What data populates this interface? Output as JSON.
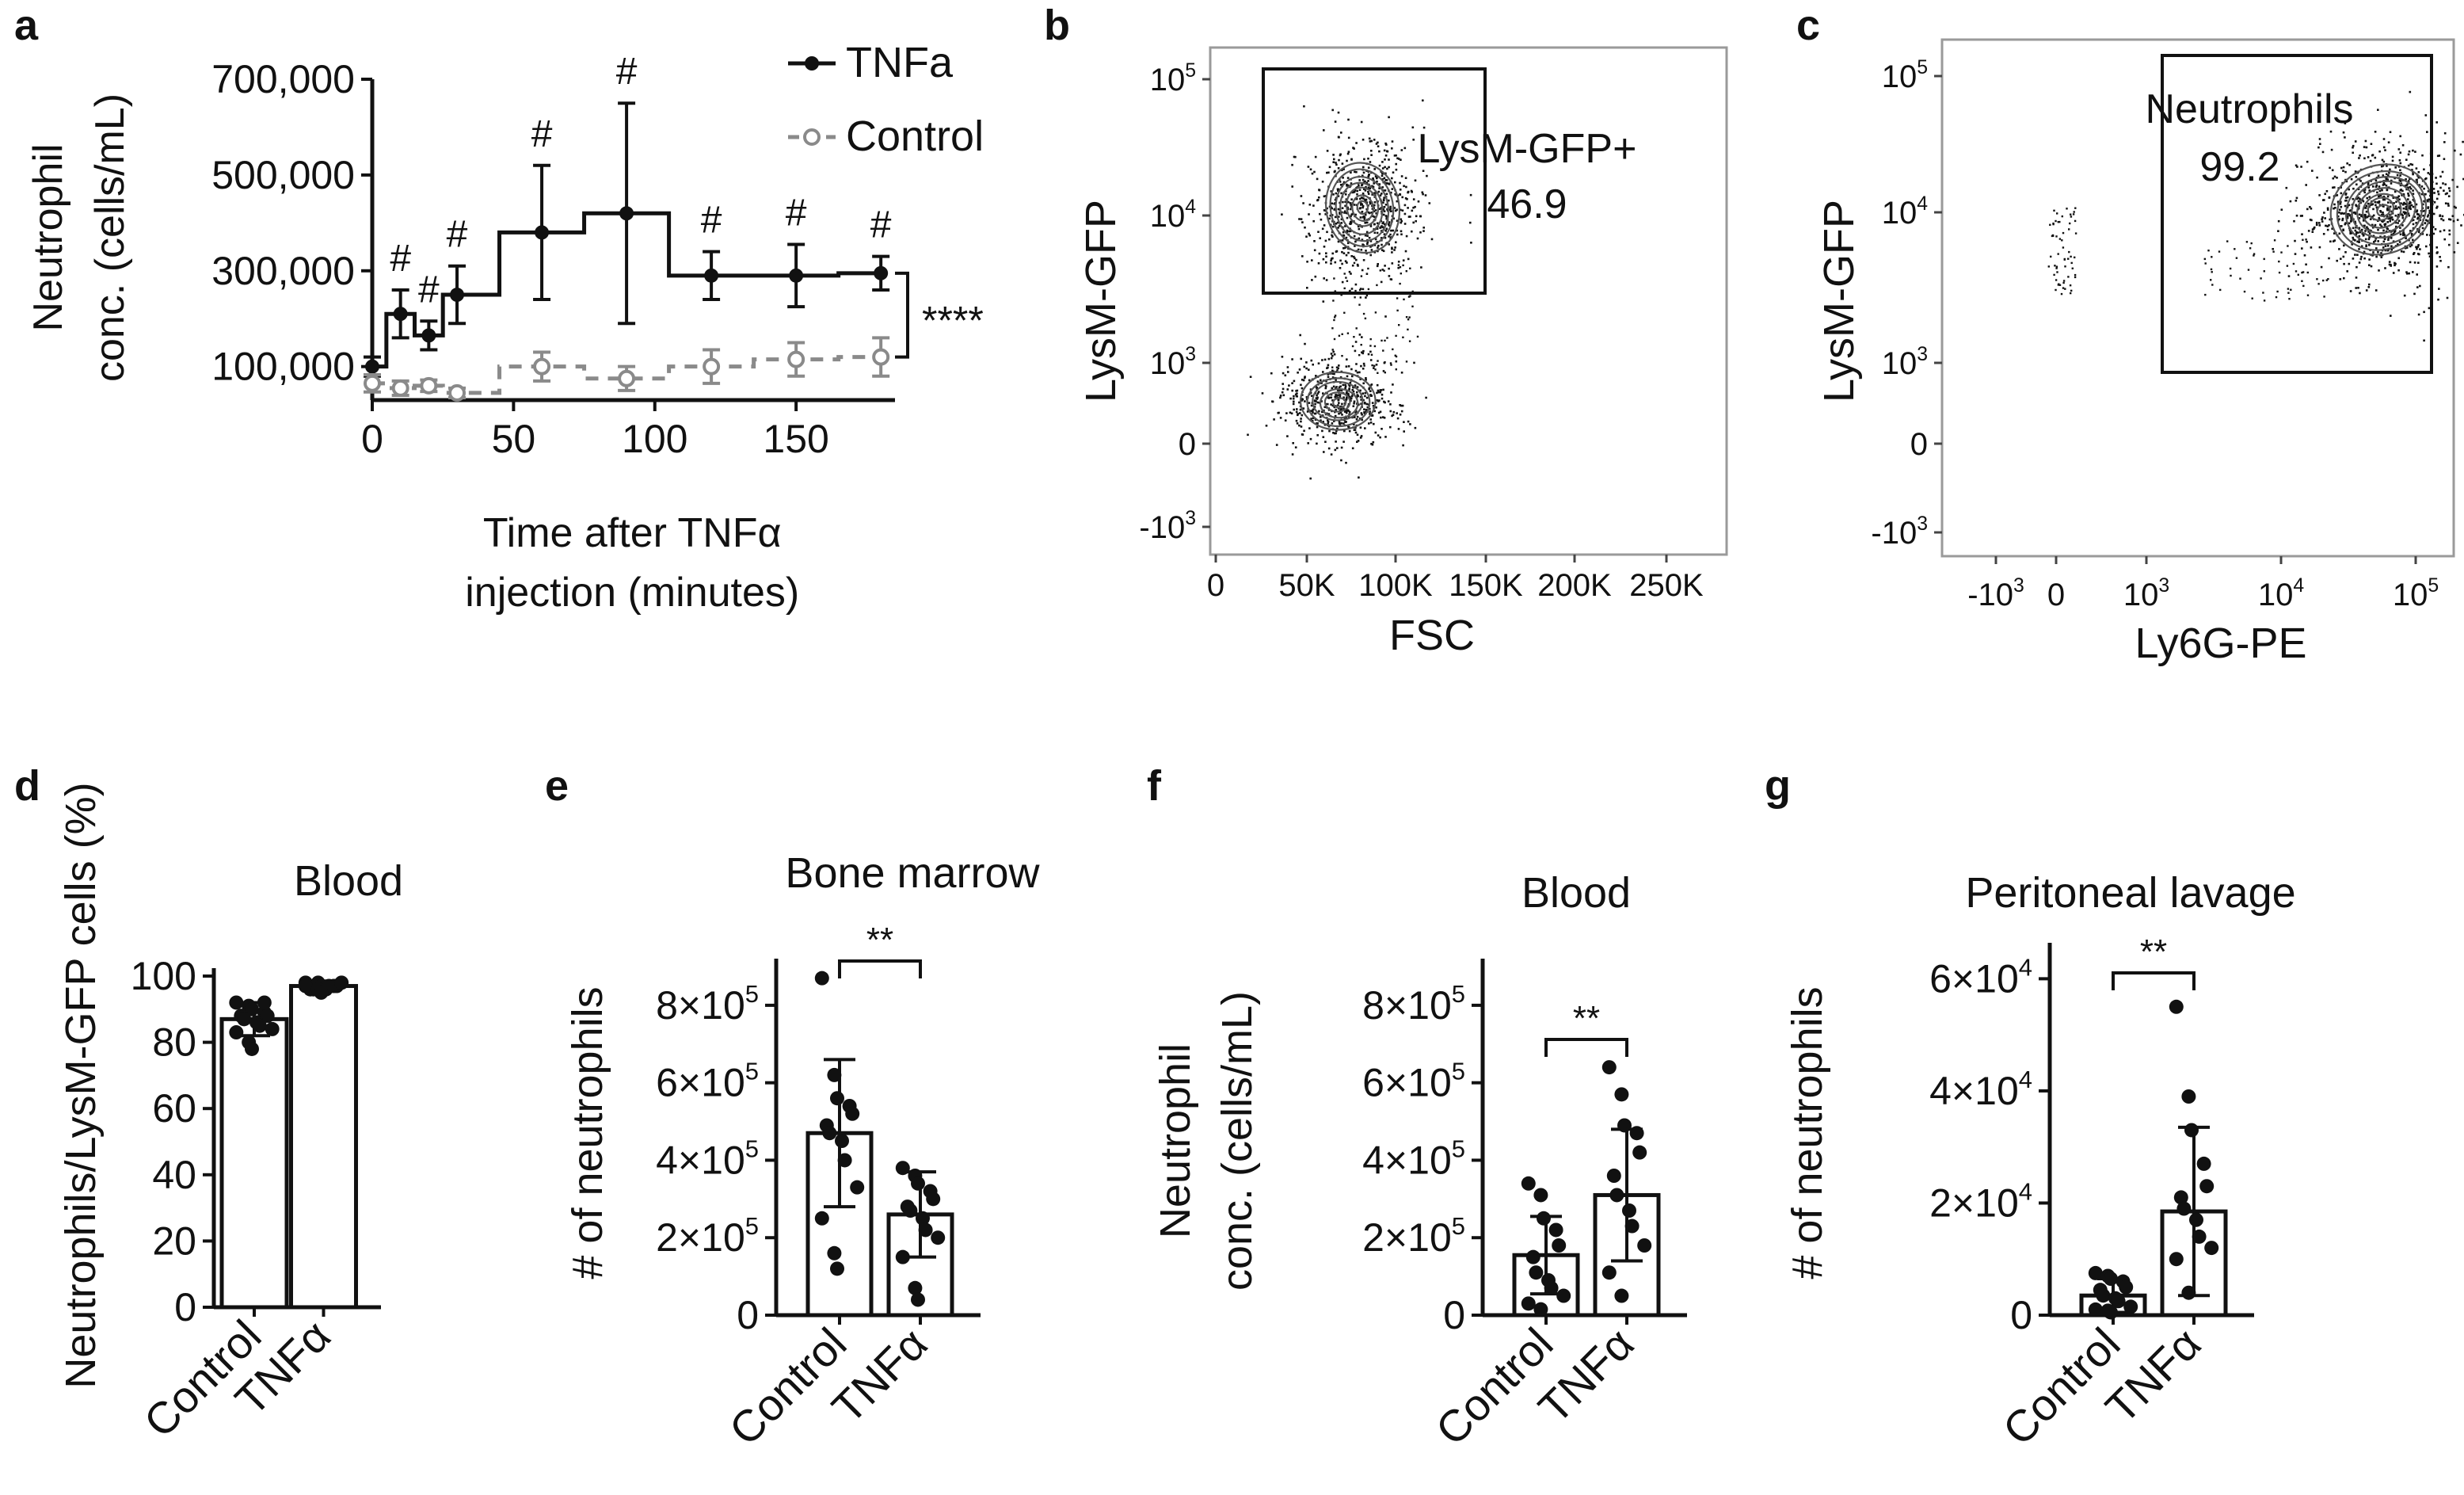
{
  "panels": {
    "a": "a",
    "b": "b",
    "c": "c",
    "d": "d",
    "e": "e",
    "f": "f",
    "g": "g"
  },
  "colors": {
    "tnf": "#111111",
    "control": "#8a8a8a",
    "axis": "#111111",
    "gate": "#111111",
    "dot": "#111111",
    "frame": "#9a9a9a"
  },
  "chart_data": [
    {
      "id": "a",
      "type": "line",
      "title": "",
      "xlabel_lines": [
        "Time after TNFα",
        "injection (minutes)"
      ],
      "ylabel_lines": [
        "Neutrophil",
        "conc. (cells/mL)"
      ],
      "xlim": [
        0,
        185
      ],
      "ylim": [
        30000,
        700000
      ],
      "xticks": [
        0,
        50,
        100,
        150
      ],
      "yticks": [
        100000,
        300000,
        500000,
        700000
      ],
      "ytick_labels": [
        "100,000",
        "300,000",
        "500,000",
        "700,000"
      ],
      "legend": [
        "TNFa",
        "Control"
      ],
      "series": [
        {
          "name": "TNFa",
          "x": [
            0,
            10,
            20,
            30,
            60,
            90,
            120,
            150,
            180
          ],
          "y": [
            100000,
            210000,
            165000,
            250000,
            380000,
            420000,
            290000,
            290000,
            295000
          ],
          "err": [
            20000,
            50000,
            30000,
            60000,
            140000,
            230000,
            50000,
            65000,
            35000
          ]
        },
        {
          "name": "Control",
          "x": [
            0,
            10,
            20,
            30,
            60,
            90,
            120,
            150,
            180
          ],
          "y": [
            65000,
            55000,
            60000,
            45000,
            100000,
            75000,
            100000,
            115000,
            120000
          ],
          "err": [
            18000,
            15000,
            12000,
            10000,
            30000,
            25000,
            35000,
            35000,
            40000
          ]
        }
      ],
      "markers": {
        "x": [
          10,
          20,
          30,
          60,
          90,
          120,
          150,
          180
        ],
        "label": "#"
      },
      "bracket_label": "****"
    },
    {
      "id": "b",
      "type": "scatter",
      "xlabel": "FSC",
      "ylabel": "LysM-GFP",
      "xticks": [
        "0",
        "50K",
        "100K",
        "150K",
        "200K",
        "250K"
      ],
      "ytick_labels": [
        {
          "text": "-10",
          "sup": "3"
        },
        {
          "text": "0",
          "sup": ""
        },
        {
          "text": "10",
          "sup": "3"
        },
        {
          "text": "10",
          "sup": "4"
        },
        {
          "text": "10",
          "sup": "5"
        }
      ],
      "gate": {
        "label": "LysM-GFP+",
        "value": "46.9"
      }
    },
    {
      "id": "c",
      "type": "scatter",
      "xlabel": "Ly6G-PE",
      "ylabel": "LysM-GFP",
      "xtick_labels": [
        {
          "text": "-10",
          "sup": "3"
        },
        {
          "text": "0",
          "sup": ""
        },
        {
          "text": "10",
          "sup": "3"
        },
        {
          "text": "10",
          "sup": "4"
        },
        {
          "text": "10",
          "sup": "5"
        }
      ],
      "ytick_labels": [
        {
          "text": "-10",
          "sup": "3"
        },
        {
          "text": "0",
          "sup": ""
        },
        {
          "text": "10",
          "sup": "3"
        },
        {
          "text": "10",
          "sup": "4"
        },
        {
          "text": "10",
          "sup": "5"
        }
      ],
      "gate": {
        "label": "Neutrophils",
        "value": "99.2"
      }
    },
    {
      "id": "d",
      "type": "bar",
      "title": "Blood",
      "ylabel": "Neutrophils/LysM-GFP cells (%)",
      "categories": [
        "Control",
        "TNFα"
      ],
      "values": [
        87,
        97
      ],
      "errors": [
        5,
        1.5
      ],
      "ylim": [
        0,
        100
      ],
      "yticks": [
        0,
        20,
        40,
        60,
        80,
        100
      ],
      "ytick_labels": [
        "0",
        "20",
        "40",
        "60",
        "80",
        "100"
      ],
      "points": [
        [
          92,
          91,
          90,
          89,
          88,
          88,
          87,
          86,
          85,
          84,
          83,
          80,
          78,
          92
        ],
        [
          98,
          98,
          97,
          97,
          97,
          96,
          96,
          96,
          97,
          98,
          97,
          96,
          95
        ]
      ],
      "significance": ""
    },
    {
      "id": "e",
      "type": "bar",
      "title": "Bone marrow",
      "ylabel": "# of neutrophils",
      "categories": [
        "Control",
        "TNFα"
      ],
      "values": [
        470000,
        260000
      ],
      "errors": [
        190000,
        110000
      ],
      "ylim": [
        0,
        900000
      ],
      "yticks": [
        0,
        200000,
        400000,
        600000,
        800000
      ],
      "ytick_labels": [
        {
          "text": "0",
          "sup": ""
        },
        {
          "text": "2×10",
          "sup": "5"
        },
        {
          "text": "4×10",
          "sup": "5"
        },
        {
          "text": "6×10",
          "sup": "5"
        },
        {
          "text": "8×10",
          "sup": "5"
        }
      ],
      "points": [
        [
          870000,
          620000,
          560000,
          540000,
          520000,
          490000,
          470000,
          450000,
          400000,
          330000,
          250000,
          160000,
          120000
        ],
        [
          380000,
          360000,
          340000,
          320000,
          300000,
          280000,
          270000,
          250000,
          220000,
          200000,
          150000,
          70000,
          40000
        ]
      ],
      "significance": "**"
    },
    {
      "id": "f",
      "type": "bar",
      "title": "Blood",
      "ylabel_lines": [
        "Neutrophil",
        "conc. (cells/mL)"
      ],
      "categories": [
        "Control",
        "TNFα"
      ],
      "values": [
        155000,
        310000
      ],
      "errors": [
        100000,
        170000
      ],
      "ylim": [
        0,
        900000
      ],
      "yticks": [
        0,
        200000,
        400000,
        600000,
        800000
      ],
      "ytick_labels": [
        {
          "text": "0",
          "sup": ""
        },
        {
          "text": "2×10",
          "sup": "5"
        },
        {
          "text": "4×10",
          "sup": "5"
        },
        {
          "text": "6×10",
          "sup": "5"
        },
        {
          "text": "8×10",
          "sup": "5"
        }
      ],
      "points": [
        [
          340000,
          310000,
          250000,
          220000,
          180000,
          150000,
          110000,
          90000,
          70000,
          50000,
          30000,
          15000
        ],
        [
          640000,
          570000,
          490000,
          470000,
          420000,
          360000,
          310000,
          270000,
          230000,
          180000,
          110000,
          50000
        ]
      ],
      "significance": "**"
    },
    {
      "id": "g",
      "type": "bar",
      "title": "Peritoneal lavage",
      "ylabel": "# of neutrophils",
      "categories": [
        "Control",
        "TNFα"
      ],
      "values": [
        3500,
        18500
      ],
      "errors": [
        3000,
        15000
      ],
      "ylim": [
        0,
        65000
      ],
      "yticks": [
        0,
        20000,
        40000,
        60000
      ],
      "ytick_labels": [
        {
          "text": "0",
          "sup": ""
        },
        {
          "text": "2×10",
          "sup": "4"
        },
        {
          "text": "4×10",
          "sup": "4"
        },
        {
          "text": "6×10",
          "sup": "4"
        }
      ],
      "points": [
        [
          7500,
          7000,
          6500,
          6000,
          5000,
          4500,
          3500,
          3000,
          2500,
          1500,
          1000,
          800,
          500
        ],
        [
          55000,
          39000,
          33000,
          27000,
          23000,
          21000,
          19000,
          17000,
          14000,
          12000,
          10000,
          4000
        ]
      ],
      "significance": "**"
    }
  ]
}
